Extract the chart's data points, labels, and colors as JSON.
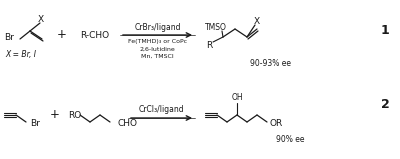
{
  "background_color": "#ffffff",
  "figsize": [
    4.0,
    1.59
  ],
  "dpi": 100,
  "reaction1": {
    "arrow_text_top": "CrBr₃/ligand",
    "arrow_text_bottom": [
      "Fe(TMHD)₃ or CoPc",
      "2,6-lutidine",
      "Mn, TMSCl"
    ],
    "product_ee": "90-93% ee",
    "product_number": "1",
    "x_label": "X = Br, I"
  },
  "reaction2": {
    "arrow_text_top": "CrCl₃/ligand",
    "product_ee": "90% ee",
    "product_number": "2"
  },
  "lc": "#1a1a1a",
  "fs": 6.5,
  "fs_s": 5.5,
  "fs_n": 9
}
